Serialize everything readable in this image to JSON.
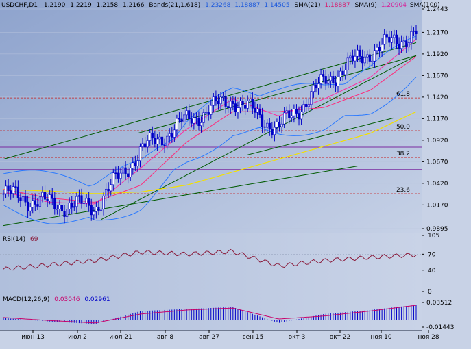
{
  "header": {
    "symbol": "USDCHF,D1",
    "ohlc": [
      "1.2190",
      "1.2219",
      "1.2158",
      "1.2166"
    ],
    "bands_label": "Bands(21,1.618)",
    "bands_values": [
      "1.23268",
      "1.18887",
      "1.14505"
    ],
    "sma21_label": "SMA(21)",
    "sma21_value": "1.18887",
    "sma9_label": "SMA(9)",
    "sma9_value": "1.20904",
    "sma100_label": "SMA(100)"
  },
  "colors": {
    "price_bg": "#a9b9d8",
    "panel_bg": "#b7c4de",
    "candle": "#0000c8",
    "band": "#2878ff",
    "sma9": "#ff2aa0",
    "sma21": "#ff2a7a",
    "sma100": "#f2e000",
    "trend": "#005a00",
    "fib": "#c81e1e",
    "rsi_line": "#8a1a3a",
    "macd_hist": "#0000c8",
    "macd_signal": "#c8006a"
  },
  "fib_labels": [
    "61.8",
    "50.0",
    "38.2",
    "23.6"
  ],
  "rsi": {
    "label": "RSI(14)",
    "value": "69",
    "ticks": [
      "105",
      "70",
      "40",
      "0"
    ]
  },
  "macd": {
    "label": "MACD(12,26,9)",
    "v1": "0.03046",
    "v2": "0.02961",
    "ticks": [
      "0.03512",
      "-0.01443"
    ]
  },
  "x_labels": [
    "июн 13",
    "июл 2",
    "июл 21",
    "авг 8",
    "авг 27",
    "сен 15",
    "окт 3",
    "окт 22",
    "ноя 10",
    "ноя 28"
  ],
  "chart_data": [
    {
      "type": "candlestick",
      "series": [
        {
          "name": "USDCHF,D1",
          "x": [
            "июн 13",
            "июл 2",
            "июл 21",
            "авг 8",
            "авг 27",
            "сен 15",
            "окт 3",
            "окт 22",
            "ноя 10",
            "ноя 28"
          ],
          "values": [
            1.03,
            1.018,
            1.015,
            1.08,
            1.115,
            1.14,
            1.105,
            1.16,
            1.195,
            1.2166
          ]
        },
        {
          "name": "SMA(9)",
          "values": [
            1.032,
            1.02,
            1.018,
            1.06,
            1.105,
            1.14,
            1.12,
            1.14,
            1.165,
            1.209
          ]
        },
        {
          "name": "SMA(21)",
          "values": [
            1.035,
            1.025,
            1.02,
            1.04,
            1.09,
            1.125,
            1.125,
            1.13,
            1.15,
            1.189
          ]
        },
        {
          "name": "SMA(100)",
          "values": [
            1.035,
            1.033,
            1.03,
            1.032,
            1.04,
            1.055,
            1.07,
            1.085,
            1.1,
            1.125
          ]
        }
      ],
      "y_ticks": [
        "1.2443",
        "1.2170",
        "1.1920",
        "1.1670",
        "1.1420",
        "1.1170",
        "1.0920",
        "1.0670",
        "1.0420",
        "1.0170",
        "0.9895"
      ],
      "ylim": [
        0.9895,
        1.2443
      ],
      "fib_levels": [
        {
          "label": "61.8",
          "value": 1.141
        },
        {
          "label": "50.0",
          "value": 1.103
        },
        {
          "label": "38.2",
          "value": 1.072
        },
        {
          "label": "23.6",
          "value": 1.03
        }
      ],
      "grid": true
    },
    {
      "type": "line",
      "series": [
        {
          "name": "RSI(14)",
          "values": [
            42,
            50,
            58,
            74,
            70,
            75,
            48,
            58,
            64,
            69
          ]
        }
      ],
      "ylim": [
        0,
        105
      ],
      "y_ticks": [
        "105",
        "70",
        "40",
        "0"
      ]
    },
    {
      "type": "bar",
      "series": [
        {
          "name": "MACD(12,26,9)",
          "values": [
            0.004,
            -0.003,
            -0.008,
            0.018,
            0.022,
            0.026,
            -0.006,
            0.012,
            0.02,
            0.03046
          ]
        },
        {
          "name": "signal",
          "values": [
            0.005,
            -0.001,
            -0.006,
            0.012,
            0.02,
            0.024,
            0.002,
            0.008,
            0.018,
            0.02961
          ]
        }
      ],
      "ylim": [
        -0.01443,
        0.03512
      ],
      "y_ticks": [
        "0.03512",
        "-0.01443"
      ]
    }
  ]
}
